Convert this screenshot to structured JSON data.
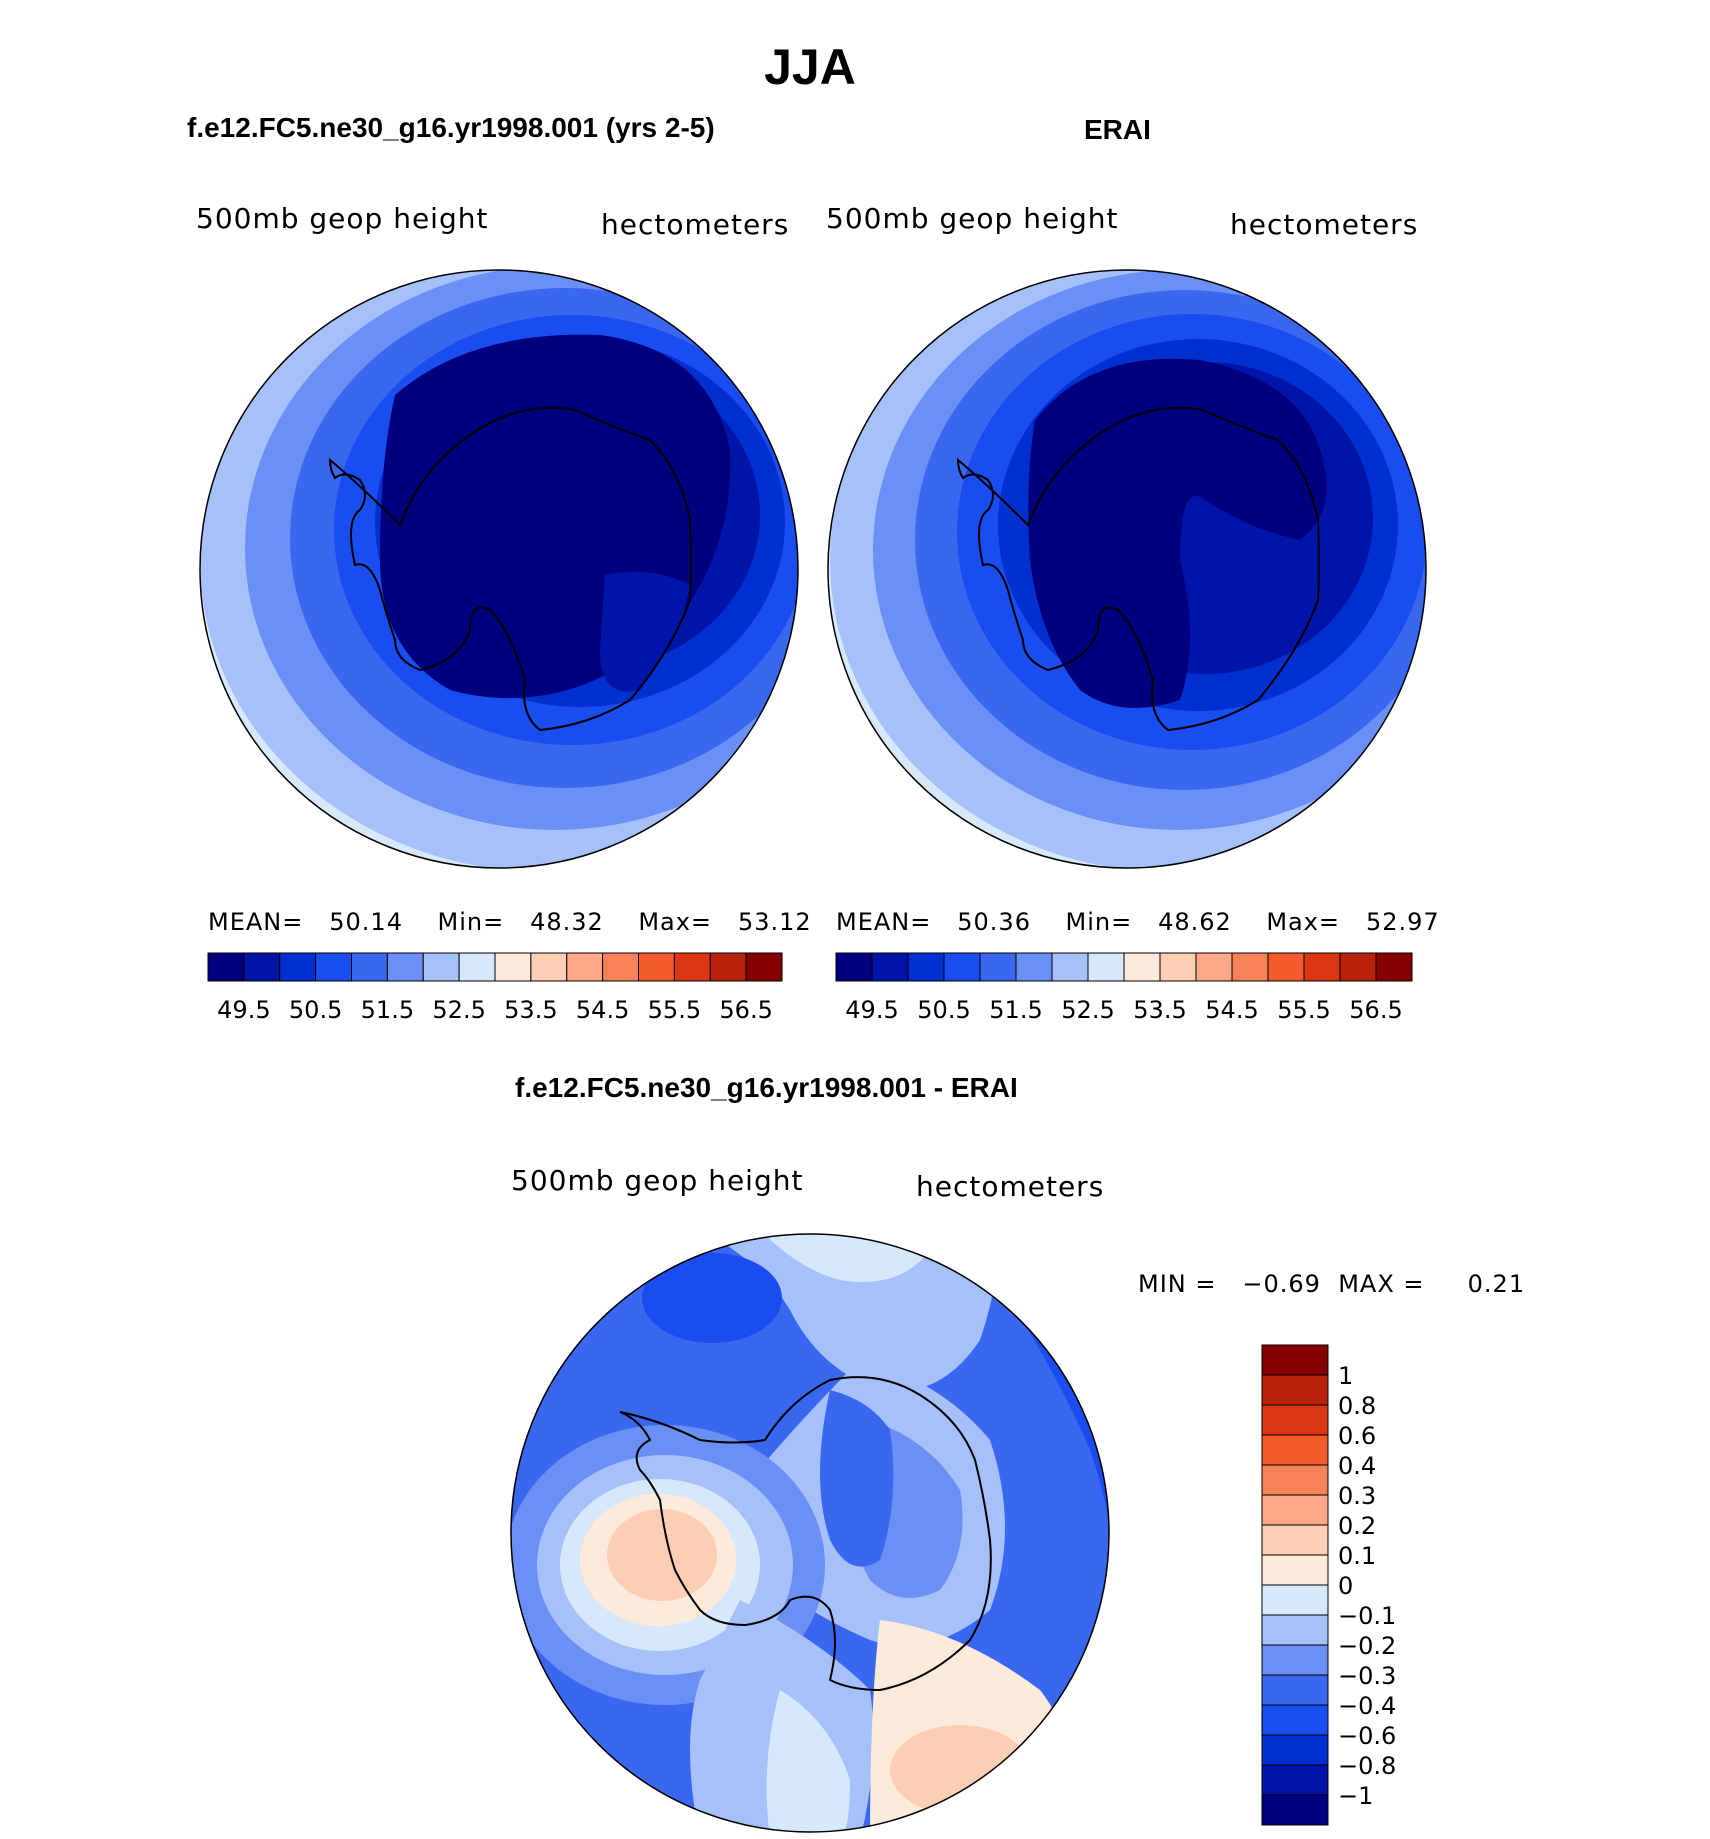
{
  "main_title": "JJA",
  "panels": [
    {
      "title": "f.e12.FC5.ne30_g16.yr1998.001 (yrs 2-5)",
      "field_label": "500mb geop height",
      "units_label": "hectometers",
      "stats": {
        "mean_label": "MEAN=",
        "mean": "50.14",
        "min_label": "Min=",
        "min": "48.32",
        "max_label": "Max=",
        "max": "53.12"
      }
    },
    {
      "title": "ERAI",
      "field_label": "500mb geop height",
      "units_label": "hectometers",
      "stats": {
        "mean_label": "MEAN=",
        "mean": "50.36",
        "min_label": "Min=",
        "min": "48.62",
        "max_label": "Max=",
        "max": "52.97"
      }
    },
    {
      "title": "f.e12.FC5.ne30_g16.yr1998.001 - ERAI",
      "field_label": "500mb geop height",
      "units_label": "hectometers",
      "stats": {
        "min_label": "MIN =",
        "min": "−0.69",
        "max_label": "MAX =",
        "max": "0.21"
      }
    }
  ],
  "colorbar_main": {
    "colors": [
      "#00007f",
      "#0015a8",
      "#0030cf",
      "#1a4df0",
      "#3a67f0",
      "#6a8ff5",
      "#a6c1fa",
      "#d7e8fb",
      "#feeadb",
      "#fdcdb4",
      "#fca78a",
      "#f88258",
      "#f55a2c",
      "#dd3612",
      "#b82208",
      "#870000"
    ],
    "labels": [
      "49.5",
      "50.5",
      "51.5",
      "52.5",
      "53.5",
      "54.5",
      "55.5",
      "56.5"
    ]
  },
  "colorbar_diff": {
    "colors": [
      "#00007f",
      "#0015a8",
      "#0030cf",
      "#1a4df0",
      "#3a67f0",
      "#6a8ff5",
      "#a6c1fa",
      "#d7e8fb",
      "#feeadb",
      "#fdcdb4",
      "#fca78a",
      "#f88258",
      "#f55a2c",
      "#dd3612",
      "#b82208",
      "#870000"
    ],
    "labels": [
      "−1",
      "−0.8",
      "−0.6",
      "−0.4",
      "−0.3",
      "−0.2",
      "−0.1",
      "0",
      "0.1",
      "0.2",
      "0.3",
      "0.4",
      "0.6",
      "0.8",
      "1"
    ]
  },
  "chart_data": [
    {
      "type": "heatmap",
      "title": "f.e12.FC5.ne30_g16.yr1998.001 (yrs 2-5)",
      "field": "500mb geop height",
      "units": "hectometers",
      "projection": "polar stereographic (south pole)",
      "mean": 50.14,
      "min": 48.32,
      "max": 53.12,
      "contour_levels": [
        49.5,
        50,
        50.5,
        51,
        51.5,
        52,
        52.5,
        53,
        53.5,
        54,
        54.5,
        55,
        55.5,
        56,
        56.5
      ]
    },
    {
      "type": "heatmap",
      "title": "ERAI",
      "field": "500mb geop height",
      "units": "hectometers",
      "projection": "polar stereographic (south pole)",
      "mean": 50.36,
      "min": 48.62,
      "max": 52.97,
      "contour_levels": [
        49.5,
        50,
        50.5,
        51,
        51.5,
        52,
        52.5,
        53,
        53.5,
        54,
        54.5,
        55,
        55.5,
        56,
        56.5
      ]
    },
    {
      "type": "heatmap",
      "title": "f.e12.FC5.ne30_g16.yr1998.001 - ERAI",
      "field": "500mb geop height",
      "units": "hectometers",
      "projection": "polar stereographic (south pole)",
      "min": -0.69,
      "max": 0.21,
      "contour_levels": [
        -1,
        -0.8,
        -0.6,
        -0.4,
        -0.3,
        -0.2,
        -0.1,
        0,
        0.1,
        0.2,
        0.3,
        0.4,
        0.6,
        0.8,
        1
      ]
    }
  ]
}
